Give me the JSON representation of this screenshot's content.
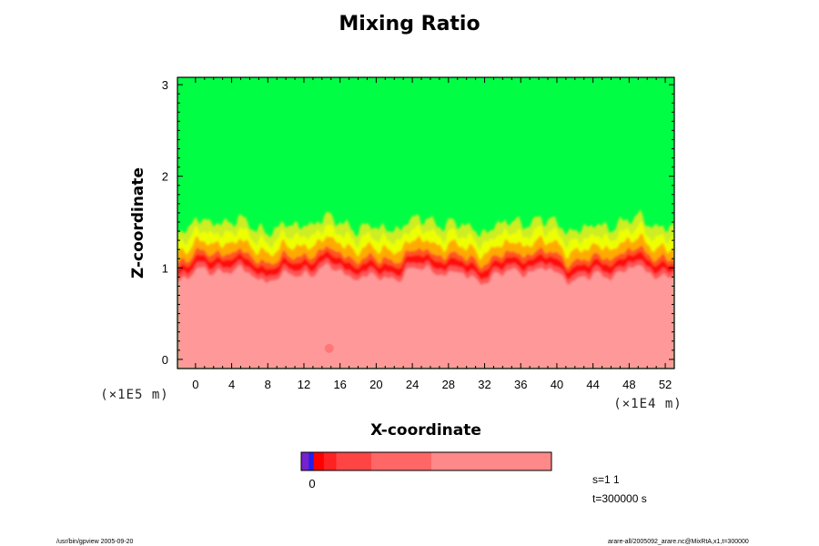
{
  "chart_data": {
    "type": "heatmap",
    "title": "Mixing Ratio",
    "xlabel": "X-coordinate",
    "ylabel": "Z-coordinate",
    "x_unit": "(×1E4 m)",
    "y_unit": "(×1E5 m)",
    "xlim": [
      -2,
      53
    ],
    "ylim": [
      -0.1,
      3.08
    ],
    "xticks": [
      0,
      4,
      8,
      12,
      16,
      20,
      24,
      28,
      32,
      36,
      40,
      44,
      48,
      52
    ],
    "yticks": [
      0,
      1,
      2,
      3
    ],
    "layers": [
      {
        "name": "background",
        "color": "#00ff44",
        "level": "high"
      },
      {
        "name": "yellow-green transition",
        "color": "#ccee22"
      },
      {
        "name": "yellow",
        "color": "#eeff00"
      },
      {
        "name": "orange",
        "color": "#ffaa00"
      },
      {
        "name": "red band",
        "color": "#ff1111"
      },
      {
        "name": "lower region",
        "color": "#ff9999",
        "level": "low"
      }
    ],
    "interface_height_approx": 1.05,
    "colorbar": {
      "tick_label": "0",
      "colors": [
        "#7722cc",
        "#2222ee",
        "#ff0000",
        "#ff2222",
        "#ff4444",
        "#ff6666",
        "#ff8888",
        "#ff9999"
      ],
      "fractions": [
        0.03,
        0.02,
        0.04,
        0.05,
        0.14,
        0.24,
        0.48
      ]
    },
    "annotations": {
      "s": "s=1 1",
      "t": "t=300000 s"
    }
  },
  "footer": {
    "left": "/usr/bin/gpview 2005-09-20",
    "right": "arare-all/2005092_arare.nc@MixRtA,x1,t=300000"
  }
}
